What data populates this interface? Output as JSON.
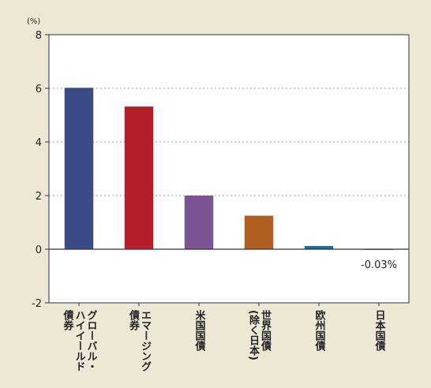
{
  "chart_data": {
    "type": "bar",
    "unit_label": "(%)",
    "categories": [
      "グローバル・ハイイールド債券",
      "エマージング債券",
      "米国国債",
      "世界国債(除く日本)",
      "欧州国債",
      "日本国債"
    ],
    "category_lines": [
      [
        "グローバル・",
        "ハイイールド",
        "債券"
      ],
      [
        "エマージング",
        "債券"
      ],
      [
        "米国国債"
      ],
      [
        "世界国債",
        "(除く日本)"
      ],
      [
        "欧州国債"
      ],
      [
        "日本国債"
      ]
    ],
    "values": [
      6.02,
      5.32,
      2.0,
      1.25,
      0.12,
      -0.03
    ],
    "value_labels": [
      "",
      "",
      "",
      "",
      "",
      "-0.03%"
    ],
    "colors": [
      "#3c4a86",
      "#b51f2b",
      "#7b5593",
      "#b15e22",
      "#1e6aa8",
      "#777777"
    ],
    "ylim": [
      -2,
      8
    ],
    "yticks": [
      -2,
      0,
      2,
      4,
      6,
      8
    ],
    "grid": true,
    "legend": "none"
  }
}
